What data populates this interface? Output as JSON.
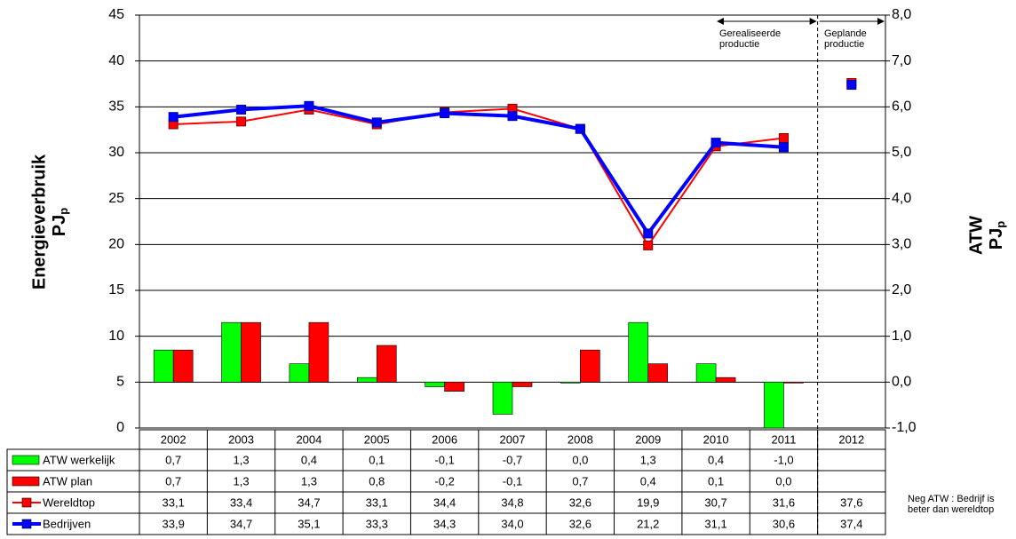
{
  "chart_data": {
    "type": "bar",
    "categories": [
      "2002",
      "2003",
      "2004",
      "2005",
      "2006",
      "2007",
      "2008",
      "2009",
      "2010",
      "2011",
      "2012"
    ],
    "ylim": [
      0,
      45
    ],
    "yticks": [
      0,
      5,
      10,
      15,
      20,
      25,
      30,
      35,
      40,
      45
    ],
    "y2lim": [
      -1,
      8
    ],
    "y2ticks": [
      {
        "value": -1,
        "label": "-1,0"
      },
      {
        "value": 0,
        "label": "0,0"
      },
      {
        "value": 1,
        "label": "1,0"
      },
      {
        "value": 2,
        "label": "2,0"
      },
      {
        "value": 3,
        "label": "3,0"
      },
      {
        "value": 4,
        "label": "4,0"
      },
      {
        "value": 5,
        "label": "5,0"
      },
      {
        "value": 6,
        "label": "6,0"
      },
      {
        "value": 7,
        "label": "7,0"
      },
      {
        "value": 8,
        "label": "8,0"
      }
    ],
    "y_label": "Energieverbruik",
    "y_unit": "PJ",
    "y_unit_sub": "p",
    "y2_label": "ATW",
    "y2_unit": "PJ",
    "y2_unit_sub": "p",
    "grid": true,
    "series": [
      {
        "name": "ATW werkelijk",
        "type": "bar",
        "axis": "y2",
        "color": "#00ff00",
        "values": [
          0.7,
          1.3,
          0.4,
          0.1,
          -0.1,
          -0.7,
          0.0,
          1.3,
          0.4,
          -1.0,
          null
        ],
        "value_labels": [
          "0,7",
          "1,3",
          "0,4",
          "0,1",
          "-0,1",
          "-0,7",
          "0,0",
          "1,3",
          "0,4",
          "-1,0",
          null
        ]
      },
      {
        "name": "ATW plan",
        "type": "bar",
        "axis": "y2",
        "color": "#ff0000",
        "values": [
          0.7,
          1.3,
          1.3,
          0.8,
          -0.2,
          -0.1,
          0.7,
          0.4,
          0.1,
          0.0,
          null
        ],
        "value_labels": [
          "0,7",
          "1,3",
          "1,3",
          "0,8",
          "-0,2",
          "-0,1",
          "0,7",
          "0,4",
          "0,1",
          "0,0",
          null
        ]
      },
      {
        "name": "Wereldtop",
        "type": "line",
        "color": "#ff0000",
        "values": [
          33.1,
          33.4,
          34.7,
          33.1,
          34.4,
          34.8,
          32.6,
          19.9,
          30.7,
          31.6,
          37.6
        ],
        "value_labels": [
          "33,1",
          "33,4",
          "34,7",
          "33,1",
          "34,4",
          "34,8",
          "32,6",
          "19,9",
          "30,7",
          "31,6",
          "37,6"
        ]
      },
      {
        "name": "Bedrijven",
        "type": "line",
        "color": "#0000ff",
        "values": [
          33.9,
          34.7,
          35.1,
          33.3,
          34.3,
          34.0,
          32.6,
          21.2,
          31.1,
          30.6,
          37.4
        ],
        "value_labels": [
          "33,9",
          "34,7",
          "35,1",
          "33,3",
          "34,3",
          "34,0",
          "32,6",
          "21,2",
          "31,1",
          "30,6",
          "37,4"
        ]
      }
    ],
    "annotations": {
      "realized": "Gerealiseerde productie",
      "planned": "Geplande productie",
      "note": "Neg ATW : Bedrijf is beter dan wereldtop"
    }
  }
}
